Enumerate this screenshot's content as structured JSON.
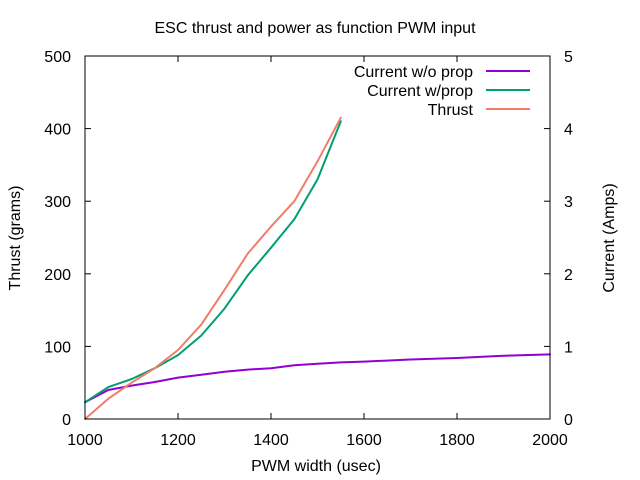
{
  "chart_data": {
    "type": "line",
    "title": "ESC thrust and power as function PWM input",
    "xlabel": "PWM width (usec)",
    "ylabel": "Thrust (grams)",
    "y2label": "Current (Amps)",
    "xlim": [
      1000,
      2000
    ],
    "ylim": [
      0,
      500
    ],
    "y2lim": [
      0,
      5
    ],
    "xticks": [
      1000,
      1200,
      1400,
      1600,
      1800,
      2000
    ],
    "xtick_labels": [
      "1000",
      "1200",
      "1400",
      "1600",
      "1800",
      "2000"
    ],
    "yticks": [
      0,
      100,
      200,
      300,
      400,
      500
    ],
    "ytick_labels": [
      "0",
      "100",
      "200",
      "300",
      "400",
      "500"
    ],
    "y2ticks": [
      0,
      1,
      2,
      3,
      4,
      5
    ],
    "y2tick_labels": [
      "0",
      "1",
      "2",
      "3",
      "4",
      "5"
    ],
    "grid": false,
    "legend_position": "top-right",
    "series": [
      {
        "name": "Current w/o prop",
        "axis": "y2",
        "color": "#9400d3",
        "x": [
          1000,
          1050,
          1100,
          1150,
          1200,
          1250,
          1300,
          1350,
          1400,
          1450,
          1500,
          1550,
          1600,
          1700,
          1800,
          1900,
          2000
        ],
        "y": [
          0.23,
          0.4,
          0.46,
          0.51,
          0.57,
          0.61,
          0.65,
          0.68,
          0.7,
          0.74,
          0.76,
          0.78,
          0.79,
          0.82,
          0.84,
          0.87,
          0.89
        ]
      },
      {
        "name": "Current w/prop",
        "axis": "y2",
        "color": "#009e73",
        "x": [
          1000,
          1050,
          1100,
          1150,
          1200,
          1250,
          1300,
          1350,
          1400,
          1450,
          1500,
          1550
        ],
        "y": [
          0.23,
          0.44,
          0.55,
          0.7,
          0.88,
          1.15,
          1.52,
          1.98,
          2.36,
          2.75,
          3.3,
          4.1
        ]
      },
      {
        "name": "Thrust",
        "axis": "y",
        "color": "#f07d6a",
        "x": [
          1000,
          1050,
          1100,
          1150,
          1200,
          1250,
          1300,
          1350,
          1400,
          1450,
          1500,
          1550
        ],
        "y": [
          0,
          28,
          50,
          70,
          95,
          130,
          178,
          228,
          265,
          300,
          355,
          415
        ]
      }
    ]
  }
}
